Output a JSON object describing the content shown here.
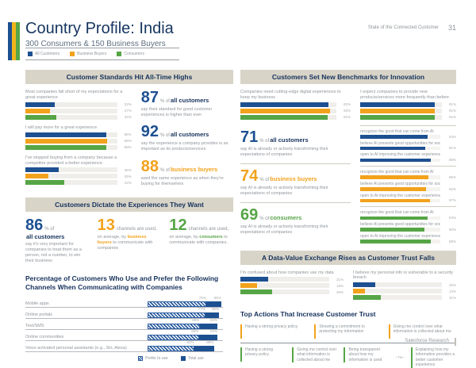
{
  "page": {
    "title": "Country Profile: India",
    "subtitle": "300 Consumers & 150 Business Buyers",
    "header_right": "State of the Connected Customer",
    "page_number": "31",
    "footer": "Salesforce Research"
  },
  "colors": {
    "blue": "#1d5091",
    "orange": "#f2a21c",
    "green": "#56a546",
    "navy": "#16325c",
    "section_bg": "#d8d4c8",
    "gray_text": "#8f959b"
  },
  "legend": {
    "items": [
      {
        "key": "all-customers",
        "label": "All Customers",
        "color": "#1d5091"
      },
      {
        "key": "business-buyers",
        "label": "Business Buyers",
        "color": "#f2a21c"
      },
      {
        "key": "consumers",
        "label": "Consumers",
        "color": "#56a546"
      }
    ]
  },
  "standards": {
    "title": "Customer Standards Hit All-Time Highs",
    "bar_groups": [
      {
        "label": "Most companies fall short of my expectations for a great experience",
        "values": [
          32,
          27,
          34
        ]
      },
      {
        "label": "I will pay more for a great experience",
        "values": [
          88,
          89,
          88
        ]
      },
      {
        "label": "I've stopped buying from a company because a competitor provided a better experience",
        "values": [
          36,
          25,
          42
        ]
      }
    ],
    "stats": [
      {
        "num": "87",
        "num_color": "blue",
        "lead": "% of ",
        "aud": "all customers",
        "aud_color": "navy",
        "desc": "say their standard for good customer experiences is higher than ever"
      },
      {
        "num": "92",
        "num_color": "blue",
        "lead": "% of ",
        "aud": "all customers",
        "aud_color": "navy",
        "desc": "say the experience a company provides is as important as its products/services"
      },
      {
        "num": "88",
        "num_color": "orange",
        "lead": "% of ",
        "aud": "business buyers",
        "aud_color": "orange",
        "desc": "want the same experience as when they're buying for themselves"
      }
    ]
  },
  "dictate": {
    "title": "Customers Dictate the Experiences They Want",
    "stats": [
      {
        "num": "86",
        "num_color": "blue",
        "lead": "% of ",
        "aud": "all customers",
        "aud_color": "navy",
        "desc_parts": [
          {
            "t": "say it's very important for companies to treat them as a person, not a number, to win their business"
          }
        ]
      },
      {
        "num": "13",
        "num_color": "orange",
        "lead": " channels are used,",
        "desc_parts": [
          {
            "t": "on average, by "
          },
          {
            "t": "business buyers",
            "c": "orange"
          },
          {
            "t": " to communicate with companies"
          }
        ]
      },
      {
        "num": "12",
        "num_color": "green",
        "lead": " channels are used,",
        "desc_parts": [
          {
            "t": "on average, by "
          },
          {
            "t": "consumers",
            "c": "green"
          },
          {
            "t": " to communicate with companies."
          }
        ]
      }
    ]
  },
  "channels": {
    "title": "Percentage of Customers Who Use and Prefer the Following Channels When Communicating with Companies",
    "legend": [
      {
        "key": "prefer",
        "label": "Prefer to use"
      },
      {
        "key": "total",
        "label": "Total use"
      }
    ],
    "rows": [
      {
        "label": "Mobile apps",
        "prefer": 78,
        "total": 98
      },
      {
        "label": "Online portals",
        "prefer": 77,
        "total": 95
      },
      {
        "label": "Text/SMS",
        "prefer": 69,
        "total": 93
      },
      {
        "label": "Online communities",
        "prefer": 68,
        "total": 93
      },
      {
        "label": "Voice-activated personal assistants (e.g., Siri, Alexa)",
        "prefer": 62,
        "total": 88
      }
    ]
  },
  "innovation": {
    "title": "Customers Set New Benchmarks for Innovation",
    "bar_groups": [
      {
        "label": "Companies need cutting-edge digital experiences to keep my business",
        "values": [
          92,
          93,
          91
        ]
      },
      {
        "label": "I expect companies to provide new products/services more frequently than before",
        "values": [
          91,
          91,
          91
        ]
      }
    ],
    "ai_stats": [
      {
        "num": "71",
        "num_color": "blue",
        "lead": "% of ",
        "aud": "all customers",
        "aud_color": "navy",
        "desc": "say AI is already or actively transforming their expectations of companies"
      },
      {
        "num": "74",
        "num_color": "orange",
        "lead": "% of ",
        "aud": "business buyers",
        "aud_color": "orange",
        "desc": "say AI is already or actively transforming their expectations of companies"
      },
      {
        "num": "69",
        "num_color": "green",
        "lead": "% of ",
        "aud": "consumers",
        "aud_color": "green",
        "desc": "say AI is already or actively transforming their expectations of companies"
      }
    ],
    "ai_groups": [
      {
        "color": "blue",
        "rows": [
          {
            "label": "recognize the good that can come from AI",
            "value": 84
          },
          {
            "label": "believe AI presents good opportunities for society",
            "value": 81
          },
          {
            "label": "open to AI improving the customer experience",
            "value": 88
          }
        ]
      },
      {
        "color": "orange",
        "rows": [
          {
            "label": "recognize the good that can come from AI",
            "value": 85
          },
          {
            "label": "believe AI presents good opportunities for society",
            "value": 82
          },
          {
            "label": "open to AI improving the customer experience",
            "value": 87
          }
        ]
      },
      {
        "color": "green",
        "rows": [
          {
            "label": "recognize the good that can come from AI",
            "value": 84
          },
          {
            "label": "believe AI presents good opportunities for society",
            "value": 80
          },
          {
            "label": "open to AI improving the customer experience",
            "value": 88
          }
        ]
      }
    ]
  },
  "trust": {
    "title": "A Data-Value Exchange Rises as Customer Trust Falls",
    "bar_groups": [
      {
        "label": "I'm confused about how companies use my data",
        "values": [
          31,
          19,
          36
        ]
      },
      {
        "label": "I believe my personal info is vulnerable to a security breach",
        "values": [
          25,
          13,
          31
        ]
      }
    ]
  },
  "trust_actions": {
    "title": "Top Actions That Increase Customer Trust",
    "tie_label": "–Tie–",
    "rows": [
      {
        "color": "orange",
        "items": [
          "Having a strong privacy policy",
          "Showing a commitment to protecting my information",
          "Giving me control over what information is collected about me"
        ]
      },
      {
        "color": "green",
        "tie_before_index": 3,
        "items": [
          "Having a strong privacy policy",
          "Giving me control over what information is collected about me",
          "Being transparent about how my information is used",
          "Explaining how my information provides a better customer experience"
        ]
      }
    ]
  }
}
